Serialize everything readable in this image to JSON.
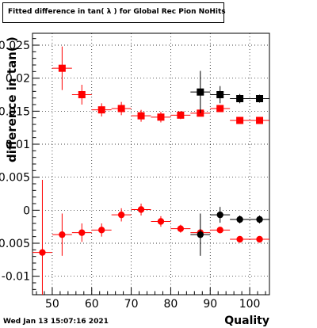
{
  "title": "Fitted difference in tan( λ ) for Global Rec Pion NoHits",
  "timestamp": "Wed Jan 13 15:07:16 2021",
  "colors": {
    "red": "#ff0000",
    "black": "#000000",
    "frame": "#000000",
    "grid": "#000000"
  },
  "chart_data": {
    "type": "scatter",
    "title": "Fitted difference in tan( λ ) for Global Rec Pion NoHits",
    "xlabel": "Quality",
    "ylabel": "difference in tan( )",
    "xlim": [
      45,
      105
    ],
    "ylim": [
      -0.0128,
      0.0268
    ],
    "grid": true,
    "x_ticks": [
      50,
      60,
      70,
      80,
      90,
      100
    ],
    "x_tick_labels": [
      "50",
      "60",
      "70",
      "80",
      "90",
      "100"
    ],
    "y_ticks": [
      -0.01,
      -0.005,
      0,
      0.005,
      0.01,
      0.015,
      0.02,
      0.025
    ],
    "y_tick_labels": [
      "-0.01",
      "-0.005",
      "0",
      "0.005",
      "0.01",
      "0.015",
      "0.02",
      "0.025"
    ],
    "series": [
      {
        "marker": "square",
        "color": "#ff0000",
        "points": [
          {
            "x": 52.5,
            "y": 0.0215,
            "yerr": 0.0033
          },
          {
            "x": 57.5,
            "y": 0.0175,
            "yerr": 0.0015
          },
          {
            "x": 62.5,
            "y": 0.0152,
            "yerr": 0.001
          },
          {
            "x": 67.5,
            "y": 0.0154,
            "yerr": 0.001
          },
          {
            "x": 72.5,
            "y": 0.0143,
            "yerr": 0.0009
          },
          {
            "x": 77.5,
            "y": 0.0141,
            "yerr": 0.0008
          },
          {
            "x": 82.5,
            "y": 0.0144,
            "yerr": 0.0006
          },
          {
            "x": 87.5,
            "y": 0.0147,
            "yerr": 0.0005
          },
          {
            "x": 92.5,
            "y": 0.0154,
            "yerr": 0.0004
          },
          {
            "x": 97.5,
            "y": 0.0136,
            "yerr": 0.0003
          },
          {
            "x": 102.5,
            "y": 0.0136,
            "yerr": 0.0003
          }
        ]
      },
      {
        "marker": "square",
        "color": "#000000",
        "points": [
          {
            "x": 87.5,
            "y": 0.0179,
            "yerr": 0.0032
          },
          {
            "x": 92.5,
            "y": 0.0175,
            "yerr": 0.0013
          },
          {
            "x": 97.5,
            "y": 0.0169,
            "yerr": 0.0007
          },
          {
            "x": 102.5,
            "y": 0.0169,
            "yerr": 0.0006
          }
        ]
      },
      {
        "marker": "circle",
        "color": "#ff0000",
        "points": [
          {
            "x": 47.5,
            "y": -0.0064,
            "yerr": 0.011
          },
          {
            "x": 52.5,
            "y": -0.0037,
            "yerr": 0.0032
          },
          {
            "x": 57.5,
            "y": -0.0034,
            "yerr": 0.0014
          },
          {
            "x": 62.5,
            "y": -0.003,
            "yerr": 0.001
          },
          {
            "x": 67.5,
            "y": -0.0007,
            "yerr": 0.001
          },
          {
            "x": 72.5,
            "y": 0.0001,
            "yerr": 0.0009
          },
          {
            "x": 77.5,
            "y": -0.0017,
            "yerr": 0.0008
          },
          {
            "x": 82.5,
            "y": -0.0028,
            "yerr": 0.0006
          },
          {
            "x": 87.5,
            "y": -0.0034,
            "yerr": 0.0005
          },
          {
            "x": 92.5,
            "y": -0.003,
            "yerr": 0.0004
          },
          {
            "x": 97.5,
            "y": -0.0044,
            "yerr": 0.0003
          },
          {
            "x": 102.5,
            "y": -0.0044,
            "yerr": 0.0003
          }
        ]
      },
      {
        "marker": "circle",
        "color": "#000000",
        "points": [
          {
            "x": 87.5,
            "y": -0.0037,
            "yerr": 0.0032
          },
          {
            "x": 92.5,
            "y": -0.0007,
            "yerr": 0.0012
          },
          {
            "x": 97.5,
            "y": -0.0014,
            "yerr": 0.0006
          },
          {
            "x": 102.5,
            "y": -0.0014,
            "yerr": 0.0006
          }
        ]
      }
    ]
  }
}
